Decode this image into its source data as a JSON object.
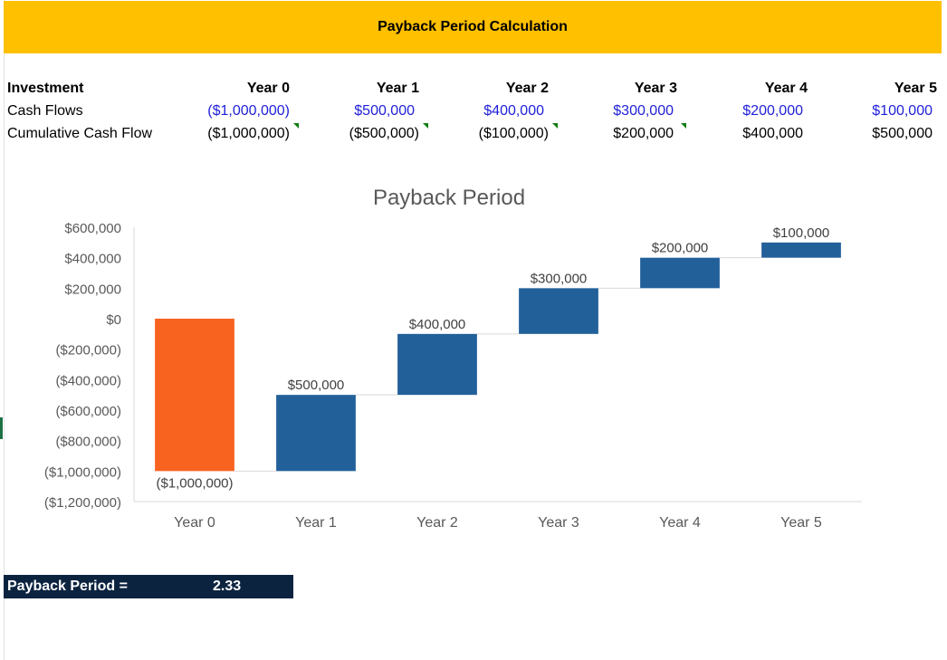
{
  "title": "Payback Period Calculation",
  "table": {
    "header_label": "Investment",
    "years": [
      "Year 0",
      "Year 1",
      "Year 2",
      "Year 3",
      "Year 4",
      "Year 5"
    ],
    "cash_flows_label": "Cash Flows",
    "cash_flows": [
      "($1,000,000)",
      "$500,000",
      "$400,000",
      "$300,000",
      "$200,000",
      "$100,000"
    ],
    "cumulative_label": "Cumulative Cash Flow",
    "cumulative": [
      "($1,000,000)",
      "($500,000)",
      "($100,000)",
      "$200,000",
      "$400,000",
      "$500,000"
    ]
  },
  "payback": {
    "label": "Payback Period =",
    "value": "2.33"
  },
  "colors": {
    "header": "#ffc000",
    "input_text": "#1f1fd9",
    "start_bar": "#f8631f",
    "step_bar": "#22609a",
    "payback_bg": "#0c2340"
  },
  "chart_data": {
    "type": "bar",
    "subtype": "waterfall",
    "title": "Payback Period",
    "categories": [
      "Year 0",
      "Year 1",
      "Year 2",
      "Year 3",
      "Year 4",
      "Year 5"
    ],
    "values": [
      -1000000,
      500000,
      400000,
      300000,
      200000,
      100000
    ],
    "cumulative": [
      -1000000,
      -500000,
      -100000,
      200000,
      400000,
      500000
    ],
    "data_labels": [
      "($1,000,000)",
      "$500,000",
      "$400,000",
      "$300,000",
      "$200,000",
      "$100,000"
    ],
    "ylim": [
      -1200000,
      600000
    ],
    "yticks": [
      600000,
      400000,
      200000,
      0,
      -200000,
      -400000,
      -600000,
      -800000,
      -1000000,
      -1200000
    ],
    "ytick_labels": [
      "$600,000",
      "$400,000",
      "$200,000",
      "$0",
      "($200,000)",
      "($400,000)",
      "($600,000)",
      "($800,000)",
      "($1,000,000)",
      "($1,200,000)"
    ],
    "xlabel": "",
    "ylabel": "",
    "grid": false,
    "legend": "none"
  }
}
